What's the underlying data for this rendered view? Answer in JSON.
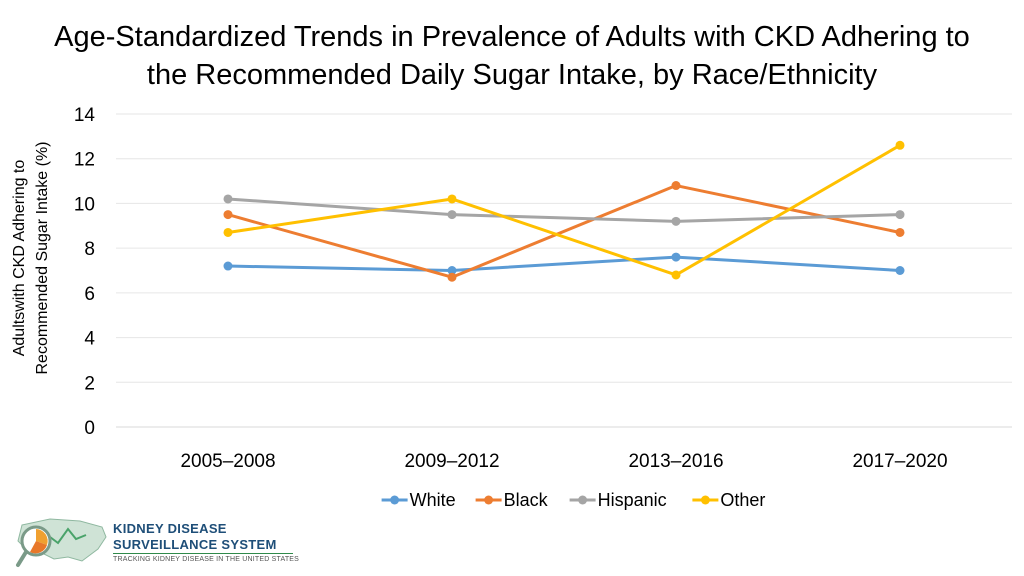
{
  "chart_data": {
    "type": "line",
    "title_line1": "Age-Standardized Trends in Prevalence of Adults with CKD Adhering to",
    "title_line2": "the Recommended Daily Sugar Intake, by Race/Ethnicity",
    "ylabel_line1": "Adultswith CKD Adhering to",
    "ylabel_line2": "Recommended Sugar Intake (%)",
    "xlabel": "",
    "categories": [
      "2005–2008",
      "2009–2012",
      "2013–2016",
      "2017–2020"
    ],
    "ylim": [
      0,
      14
    ],
    "yticks": [
      "0",
      "2",
      "4",
      "6",
      "8",
      "10",
      "12",
      "14"
    ],
    "grid": true,
    "legend_position": "bottom",
    "series": [
      {
        "name": "White",
        "values": [
          7.2,
          7.0,
          7.6,
          7.0
        ],
        "color": "#5B9BD5"
      },
      {
        "name": "Black",
        "values": [
          9.5,
          6.7,
          10.8,
          8.7
        ],
        "color": "#ED7D31"
      },
      {
        "name": "Hispanic",
        "values": [
          10.2,
          9.5,
          9.2,
          9.5
        ],
        "color": "#A5A5A5"
      },
      {
        "name": "Other",
        "values": [
          8.7,
          10.2,
          6.8,
          12.6
        ],
        "color": "#FFC000"
      }
    ]
  },
  "logo": {
    "line1": "KIDNEY DISEASE",
    "line2": "SURVEILLANCE SYSTEM",
    "line3": "TRACKING KIDNEY DISEASE IN THE UNITED STATES"
  }
}
